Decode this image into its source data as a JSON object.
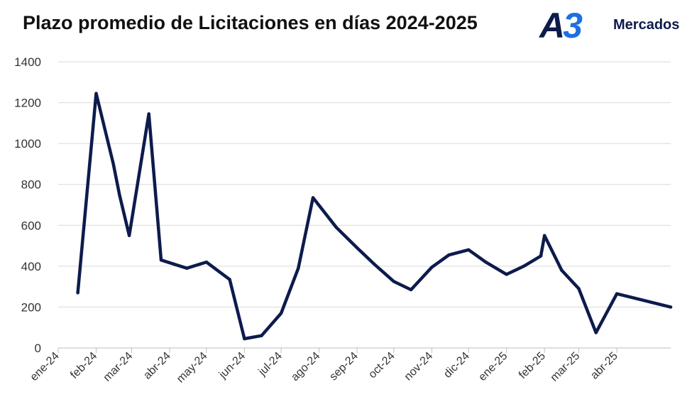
{
  "chart_data": {
    "type": "line",
    "title": "Plazo promedio de Licitaciones  en días 2024-2025",
    "logo": {
      "mark_a": "A",
      "mark_3": "3",
      "text": "Mercados"
    },
    "xlabel": "",
    "ylabel": "",
    "ylim": [
      0,
      1400
    ],
    "yticks": [
      0,
      200,
      400,
      600,
      800,
      1000,
      1200,
      1400
    ],
    "xlim": [
      "2024-01-01",
      "2025-05-15"
    ],
    "xtick_dates": [
      "2024-01-01",
      "2024-02-01",
      "2024-03-01",
      "2024-04-01",
      "2024-05-01",
      "2024-06-01",
      "2024-07-01",
      "2024-08-01",
      "2024-09-01",
      "2024-10-01",
      "2024-11-01",
      "2024-12-01",
      "2025-01-01",
      "2025-02-01",
      "2025-03-01",
      "2025-04-01"
    ],
    "xtick_labels": [
      "ene-24",
      "feb-24",
      "mar-24",
      "abr-24",
      "may-24",
      "jun-24",
      "jul-24",
      "ago-24",
      "sep-24",
      "oct-24",
      "nov-24",
      "dic-24",
      "ene-25",
      "feb-25",
      "mar-25",
      "abr-25"
    ],
    "grid": "horizontal",
    "line_color": "#0d1b4c",
    "series": [
      {
        "x": [
          "2024-01-17",
          "2024-02-01",
          "2024-02-15",
          "2024-02-20",
          "2024-02-28",
          "2024-03-15",
          "2024-03-25",
          "2024-04-15",
          "2024-05-01",
          "2024-05-20",
          "2024-06-01",
          "2024-06-15",
          "2024-07-01",
          "2024-07-15",
          "2024-07-27",
          "2024-08-15",
          "2024-09-01",
          "2024-09-15",
          "2024-10-01",
          "2024-10-15",
          "2024-11-01",
          "2024-11-15",
          "2024-12-01",
          "2024-12-15",
          "2025-01-01",
          "2025-01-15",
          "2025-01-29",
          "2025-02-01",
          "2025-02-15",
          "2025-03-01",
          "2025-03-15",
          "2025-04-01",
          "2025-05-15"
        ],
        "values": [
          270,
          1245,
          900,
          750,
          550,
          1145,
          430,
          390,
          420,
          335,
          45,
          60,
          170,
          390,
          735,
          590,
          490,
          410,
          325,
          285,
          395,
          455,
          480,
          420,
          360,
          400,
          450,
          550,
          380,
          290,
          75,
          265,
          200
        ]
      }
    ]
  }
}
